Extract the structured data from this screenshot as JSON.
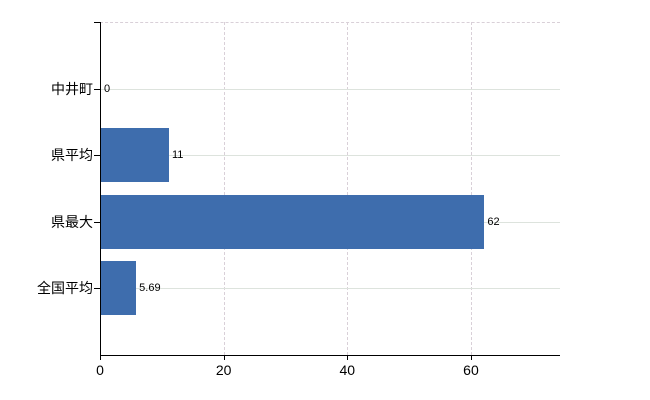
{
  "chart_data": {
    "type": "bar",
    "orientation": "horizontal",
    "categories": [
      "中井町",
      "県平均",
      "県最大",
      "全国平均"
    ],
    "values": [
      0,
      11,
      62,
      5.69
    ],
    "value_labels": [
      "0",
      "11",
      "62",
      "5.69"
    ],
    "xticks": [
      0,
      20,
      40,
      60
    ],
    "xtick_labels": [
      "0",
      "20",
      "40",
      "60"
    ],
    "xlim": [
      0,
      74.4
    ],
    "grid": "solid light horizontal lines at each category, dashed light vertical lines at each x tick, dashed top border",
    "legend": "none",
    "colors": {
      "bar": "#3e6dad",
      "axis": "#000000",
      "grid_horizontal": "#dde3dd",
      "grid_vertical": "#d9d0d8",
      "text": "#000000"
    }
  }
}
